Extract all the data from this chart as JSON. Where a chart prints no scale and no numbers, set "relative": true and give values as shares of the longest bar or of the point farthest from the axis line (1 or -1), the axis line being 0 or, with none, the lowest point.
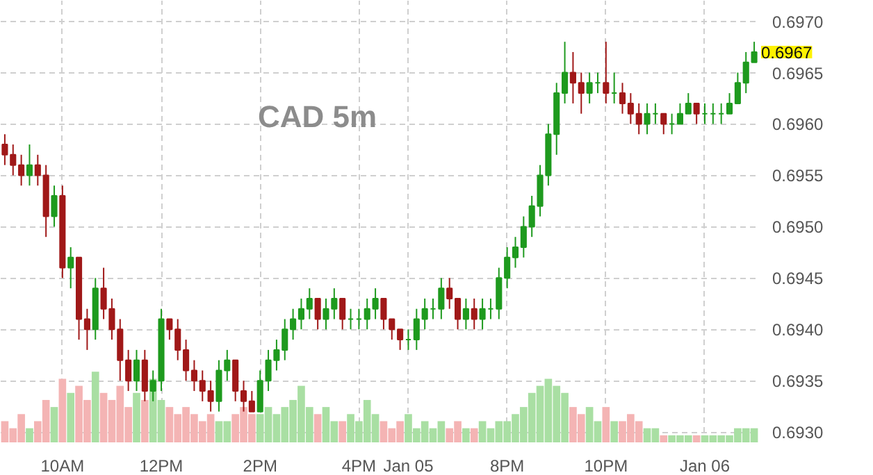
{
  "chart_data": [
    {
      "type": "candlestick",
      "title": "CAD 5m",
      "annotations": [
        "0.6967"
      ],
      "categories": [
        null,
        null,
        null,
        null,
        null,
        null,
        null,
        "10AM",
        null,
        null,
        null,
        null,
        null,
        null,
        null,
        null,
        null,
        null,
        null,
        "12PM",
        null,
        null,
        null,
        null,
        null,
        null,
        null,
        null,
        null,
        null,
        null,
        "2PM",
        null,
        null,
        null,
        null,
        null,
        null,
        null,
        null,
        null,
        null,
        null,
        "4PM",
        null,
        null,
        null,
        null,
        null,
        "Jan 05",
        null,
        null,
        null,
        null,
        null,
        null,
        null,
        null,
        null,
        null,
        null,
        "8PM",
        null,
        null,
        null,
        null,
        null,
        null,
        null,
        null,
        null,
        null,
        null,
        "10PM",
        null,
        null,
        null,
        null,
        null,
        null,
        null,
        null,
        null,
        null,
        null,
        "Jan 06",
        null,
        null,
        null,
        null,
        null,
        null
      ],
      "ohlc": [
        [
          0.6958,
          0.6959,
          0.6956,
          0.6957
        ],
        [
          0.6957,
          0.6958,
          0.6955,
          0.6956
        ],
        [
          0.6956,
          0.6957,
          0.6954,
          0.6955
        ],
        [
          0.6955,
          0.6958,
          0.6954,
          0.6956
        ],
        [
          0.6956,
          0.6957,
          0.6954,
          0.6955
        ],
        [
          0.6955,
          0.6956,
          0.6949,
          0.6951
        ],
        [
          0.6951,
          0.6954,
          0.695,
          0.6953
        ],
        [
          0.6953,
          0.6954,
          0.6945,
          0.6946
        ],
        [
          0.6946,
          0.6948,
          0.6944,
          0.6947
        ],
        [
          0.6947,
          0.6947,
          0.6939,
          0.6941
        ],
        [
          0.6941,
          0.6942,
          0.6938,
          0.694
        ],
        [
          0.694,
          0.6945,
          0.6939,
          0.6944
        ],
        [
          0.6944,
          0.6946,
          0.6941,
          0.6942
        ],
        [
          0.6942,
          0.6943,
          0.6939,
          0.694
        ],
        [
          0.694,
          0.6941,
          0.6935,
          0.6937
        ],
        [
          0.6937,
          0.6938,
          0.6934,
          0.6935
        ],
        [
          0.6935,
          0.6938,
          0.6934,
          0.6937
        ],
        [
          0.6937,
          0.6938,
          0.6933,
          0.6934
        ],
        [
          0.6934,
          0.6936,
          0.6933,
          0.6935
        ],
        [
          0.6935,
          0.6942,
          0.6934,
          0.6941
        ],
        [
          0.6941,
          0.6941,
          0.6939,
          0.694
        ],
        [
          0.694,
          0.6941,
          0.6937,
          0.6938
        ],
        [
          0.6938,
          0.6939,
          0.6935,
          0.6936
        ],
        [
          0.6936,
          0.6937,
          0.6934,
          0.6935
        ],
        [
          0.6935,
          0.6936,
          0.6933,
          0.6934
        ],
        [
          0.6934,
          0.6935,
          0.6932,
          0.6933
        ],
        [
          0.6933,
          0.6937,
          0.6932,
          0.6936
        ],
        [
          0.6936,
          0.6938,
          0.6935,
          0.6937
        ],
        [
          0.6937,
          0.6937,
          0.6933,
          0.6934
        ],
        [
          0.6934,
          0.6935,
          0.6932,
          0.6933
        ],
        [
          0.6933,
          0.6934,
          0.6932,
          0.6932
        ],
        [
          0.6932,
          0.6936,
          0.6932,
          0.6935
        ],
        [
          0.6935,
          0.6938,
          0.6934,
          0.6937
        ],
        [
          0.6937,
          0.6939,
          0.6936,
          0.6938
        ],
        [
          0.6938,
          0.6941,
          0.6937,
          0.694
        ],
        [
          0.694,
          0.6942,
          0.6939,
          0.6941
        ],
        [
          0.6941,
          0.6943,
          0.694,
          0.6942
        ],
        [
          0.6942,
          0.6944,
          0.6941,
          0.6943
        ],
        [
          0.6943,
          0.6943,
          0.694,
          0.6941
        ],
        [
          0.6941,
          0.6943,
          0.694,
          0.6942
        ],
        [
          0.6942,
          0.6944,
          0.6941,
          0.6943
        ],
        [
          0.6943,
          0.6943,
          0.694,
          0.6941
        ],
        [
          0.6941,
          0.6942,
          0.694,
          0.6941
        ],
        [
          0.6941,
          0.6942,
          0.694,
          0.6941
        ],
        [
          0.6941,
          0.6943,
          0.694,
          0.6942
        ],
        [
          0.6942,
          0.6944,
          0.6941,
          0.6943
        ],
        [
          0.6943,
          0.6943,
          0.694,
          0.6941
        ],
        [
          0.6941,
          0.6941,
          0.6939,
          0.694
        ],
        [
          0.694,
          0.694,
          0.6938,
          0.6939
        ],
        [
          0.6939,
          0.694,
          0.6938,
          0.6939
        ],
        [
          0.6939,
          0.6942,
          0.6938,
          0.6941
        ],
        [
          0.6941,
          0.6943,
          0.694,
          0.6942
        ],
        [
          0.6942,
          0.6943,
          0.6941,
          0.6942
        ],
        [
          0.6942,
          0.6945,
          0.6941,
          0.6944
        ],
        [
          0.6944,
          0.6945,
          0.6942,
          0.6943
        ],
        [
          0.6943,
          0.6943,
          0.694,
          0.6941
        ],
        [
          0.6941,
          0.6943,
          0.694,
          0.6942
        ],
        [
          0.6942,
          0.6943,
          0.694,
          0.6941
        ],
        [
          0.6941,
          0.6943,
          0.694,
          0.6942
        ],
        [
          0.6942,
          0.6943,
          0.6941,
          0.6942
        ],
        [
          0.6942,
          0.6946,
          0.6941,
          0.6945
        ],
        [
          0.6945,
          0.6948,
          0.6944,
          0.6947
        ],
        [
          0.6947,
          0.6949,
          0.6946,
          0.6948
        ],
        [
          0.6948,
          0.6951,
          0.6947,
          0.695
        ],
        [
          0.695,
          0.6953,
          0.6949,
          0.6952
        ],
        [
          0.6952,
          0.6956,
          0.6951,
          0.6955
        ],
        [
          0.6955,
          0.696,
          0.6954,
          0.6959
        ],
        [
          0.6959,
          0.6964,
          0.6957,
          0.6963
        ],
        [
          0.6963,
          0.6968,
          0.6962,
          0.6965
        ],
        [
          0.6965,
          0.6967,
          0.6962,
          0.6964
        ],
        [
          0.6964,
          0.6965,
          0.6961,
          0.6963
        ],
        [
          0.6963,
          0.6965,
          0.6962,
          0.6964
        ],
        [
          0.6964,
          0.6965,
          0.6963,
          0.6964
        ],
        [
          0.6964,
          0.6968,
          0.6962,
          0.6963
        ],
        [
          0.6963,
          0.6965,
          0.6962,
          0.6963
        ],
        [
          0.6963,
          0.6964,
          0.6961,
          0.6962
        ],
        [
          0.6962,
          0.6963,
          0.696,
          0.6961
        ],
        [
          0.6961,
          0.6962,
          0.6959,
          0.696
        ],
        [
          0.696,
          0.6962,
          0.6959,
          0.6961
        ],
        [
          0.6961,
          0.6962,
          0.696,
          0.6961
        ],
        [
          0.6961,
          0.6961,
          0.6959,
          0.696
        ],
        [
          0.696,
          0.6961,
          0.6959,
          0.696
        ],
        [
          0.696,
          0.6962,
          0.696,
          0.6961
        ],
        [
          0.6961,
          0.6963,
          0.6961,
          0.6962
        ],
        [
          0.6962,
          0.6962,
          0.696,
          0.6961
        ],
        [
          0.6961,
          0.6962,
          0.696,
          0.6961
        ],
        [
          0.6961,
          0.6962,
          0.696,
          0.6961
        ],
        [
          0.6961,
          0.6962,
          0.696,
          0.6961
        ],
        [
          0.6961,
          0.6963,
          0.6961,
          0.6962
        ],
        [
          0.6962,
          0.6965,
          0.6962,
          0.6964
        ],
        [
          0.6964,
          0.6967,
          0.6963,
          0.6966
        ],
        [
          0.6966,
          0.6968,
          0.6966,
          0.6967
        ]
      ],
      "colors": [
        "#a01818",
        "#a01818",
        "#a01818",
        "#1e9a1e",
        "#a01818",
        "#a01818",
        "#1e9a1e",
        "#a01818",
        "#1e9a1e",
        "#a01818",
        "#a01818",
        "#1e9a1e",
        "#a01818",
        "#a01818",
        "#a01818",
        "#a01818",
        "#1e9a1e",
        "#a01818",
        "#1e9a1e",
        "#1e9a1e",
        "#a01818",
        "#a01818",
        "#a01818",
        "#a01818",
        "#a01818",
        "#a01818",
        "#1e9a1e",
        "#1e9a1e",
        "#a01818",
        "#a01818",
        "#a01818",
        "#1e9a1e",
        "#1e9a1e",
        "#1e9a1e",
        "#1e9a1e",
        "#1e9a1e",
        "#1e9a1e",
        "#1e9a1e",
        "#a01818",
        "#1e9a1e",
        "#1e9a1e",
        "#a01818",
        "#1e9a1e",
        "#1e9a1e",
        "#1e9a1e",
        "#1e9a1e",
        "#a01818",
        "#a01818",
        "#a01818",
        "#1e9a1e",
        "#1e9a1e",
        "#1e9a1e",
        "#1e9a1e",
        "#1e9a1e",
        "#a01818",
        "#a01818",
        "#1e9a1e",
        "#a01818",
        "#1e9a1e",
        "#1e9a1e",
        "#1e9a1e",
        "#1e9a1e",
        "#1e9a1e",
        "#1e9a1e",
        "#1e9a1e",
        "#1e9a1e",
        "#1e9a1e",
        "#1e9a1e",
        "#1e9a1e",
        "#a01818",
        "#a01818",
        "#1e9a1e",
        "#1e9a1e",
        "#a01818",
        "#1e9a1e",
        "#a01818",
        "#a01818",
        "#a01818",
        "#1e9a1e",
        "#1e9a1e",
        "#a01818",
        "#1e9a1e",
        "#1e9a1e",
        "#1e9a1e",
        "#a01818",
        "#1e9a1e",
        "#1e9a1e",
        "#1e9a1e",
        "#1e9a1e",
        "#1e9a1e",
        "#1e9a1e",
        "#1e9a1e"
      ],
      "ylim": [
        0.6929,
        0.6972
      ],
      "yticks": [
        {
          "value": 0.693,
          "label": "0.6930"
        },
        {
          "value": 0.6935,
          "label": "0.6935"
        },
        {
          "value": 0.694,
          "label": "0.6940"
        },
        {
          "value": 0.6945,
          "label": "0.6945"
        },
        {
          "value": 0.695,
          "label": "0.6950"
        },
        {
          "value": 0.6955,
          "label": "0.6955"
        },
        {
          "value": 0.696,
          "label": "0.6960"
        },
        {
          "value": 0.6965,
          "label": "0.6965"
        },
        {
          "value": 0.697,
          "label": "0.6970"
        }
      ],
      "grid": true
    },
    {
      "type": "bar",
      "relative": true,
      "categories": [
        null,
        null,
        null,
        null,
        null,
        null,
        null,
        null,
        null,
        null,
        null,
        null,
        null,
        null,
        null,
        null,
        null,
        null,
        null,
        null,
        null,
        null,
        null,
        null,
        null,
        null,
        null,
        null,
        null,
        null,
        null,
        null,
        null,
        null,
        null,
        null,
        null,
        null,
        null,
        null,
        null,
        null,
        null,
        null,
        null,
        null,
        null,
        null,
        null,
        null,
        null,
        null,
        null,
        null,
        null,
        null,
        null,
        null,
        null,
        null,
        null,
        null,
        null,
        null,
        null,
        null,
        null,
        null,
        null,
        null,
        null,
        null,
        null,
        null,
        null,
        null,
        null,
        null,
        null,
        null,
        null,
        null,
        null,
        null,
        null,
        null,
        null,
        null,
        null,
        null,
        null,
        null
      ],
      "values": [
        0.3,
        0.2,
        0.4,
        0.2,
        0.3,
        0.6,
        0.5,
        0.9,
        0.7,
        0.8,
        0.6,
        1.0,
        0.7,
        0.6,
        0.8,
        0.5,
        0.7,
        0.6,
        0.9,
        0.6,
        0.5,
        0.4,
        0.5,
        0.4,
        0.3,
        0.4,
        0.3,
        0.3,
        0.4,
        0.5,
        0.4,
        0.4,
        0.5,
        0.4,
        0.5,
        0.6,
        0.8,
        0.5,
        0.4,
        0.5,
        0.3,
        0.3,
        0.4,
        0.3,
        0.6,
        0.4,
        0.3,
        0.2,
        0.3,
        0.4,
        0.2,
        0.3,
        0.2,
        0.3,
        0.2,
        0.3,
        0.2,
        0.2,
        0.3,
        0.2,
        0.3,
        0.3,
        0.4,
        0.5,
        0.7,
        0.8,
        0.9,
        0.8,
        0.7,
        0.5,
        0.4,
        0.5,
        0.3,
        0.5,
        0.3,
        0.3,
        0.4,
        0.3,
        0.2,
        0.2,
        0.1,
        0.1,
        0.1,
        0.1,
        0.1,
        0.1,
        0.1,
        0.1,
        0.1,
        0.2,
        0.2,
        0.2
      ],
      "colors": [
        "#f4b4b4",
        "#f4b4b4",
        "#f4b4b4",
        "#a9dfa3",
        "#f4b4b4",
        "#f4b4b4",
        "#a9dfa3",
        "#f4b4b4",
        "#a9dfa3",
        "#f4b4b4",
        "#f4b4b4",
        "#a9dfa3",
        "#f4b4b4",
        "#f4b4b4",
        "#f4b4b4",
        "#f4b4b4",
        "#a9dfa3",
        "#f4b4b4",
        "#a9dfa3",
        "#a9dfa3",
        "#f4b4b4",
        "#f4b4b4",
        "#f4b4b4",
        "#f4b4b4",
        "#f4b4b4",
        "#f4b4b4",
        "#a9dfa3",
        "#a9dfa3",
        "#f4b4b4",
        "#f4b4b4",
        "#f4b4b4",
        "#a9dfa3",
        "#a9dfa3",
        "#a9dfa3",
        "#a9dfa3",
        "#a9dfa3",
        "#a9dfa3",
        "#a9dfa3",
        "#f4b4b4",
        "#a9dfa3",
        "#a9dfa3",
        "#f4b4b4",
        "#a9dfa3",
        "#a9dfa3",
        "#a9dfa3",
        "#a9dfa3",
        "#f4b4b4",
        "#f4b4b4",
        "#f4b4b4",
        "#a9dfa3",
        "#a9dfa3",
        "#a9dfa3",
        "#a9dfa3",
        "#a9dfa3",
        "#f4b4b4",
        "#f4b4b4",
        "#a9dfa3",
        "#f4b4b4",
        "#a9dfa3",
        "#a9dfa3",
        "#a9dfa3",
        "#a9dfa3",
        "#a9dfa3",
        "#a9dfa3",
        "#a9dfa3",
        "#a9dfa3",
        "#a9dfa3",
        "#a9dfa3",
        "#a9dfa3",
        "#f4b4b4",
        "#f4b4b4",
        "#a9dfa3",
        "#a9dfa3",
        "#f4b4b4",
        "#a9dfa3",
        "#f4b4b4",
        "#f4b4b4",
        "#f4b4b4",
        "#a9dfa3",
        "#a9dfa3",
        "#f4b4b4",
        "#a9dfa3",
        "#a9dfa3",
        "#a9dfa3",
        "#f4b4b4",
        "#a9dfa3",
        "#a9dfa3",
        "#a9dfa3",
        "#a9dfa3",
        "#a9dfa3",
        "#a9dfa3",
        "#a9dfa3"
      ]
    }
  ]
}
